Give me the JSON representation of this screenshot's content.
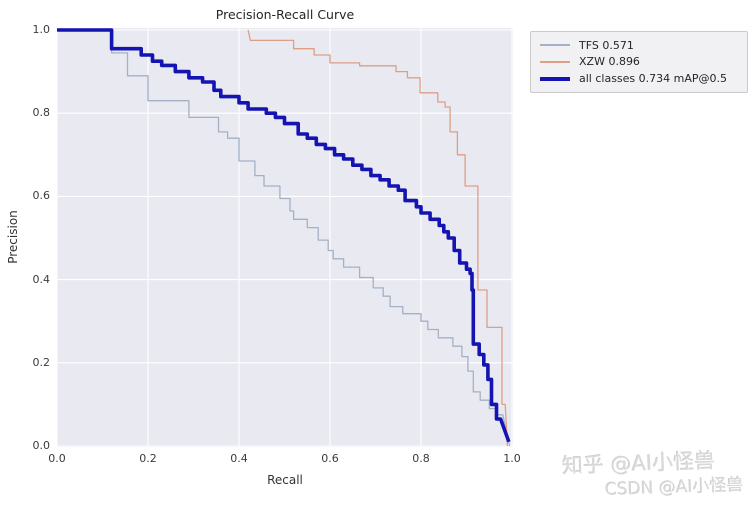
{
  "title": "Precision-Recall Curve",
  "axes": {
    "xlabel": "Recall",
    "ylabel": "Precision",
    "x_ticks": [
      0.0,
      0.2,
      0.4,
      0.6,
      0.8,
      1.0
    ],
    "y_ticks": [
      0.0,
      0.2,
      0.4,
      0.6,
      0.8,
      1.0
    ]
  },
  "legend": {
    "items": [
      {
        "label": "TFS 0.571",
        "color": "#a3b1c6",
        "weight": 2
      },
      {
        "label": "XZW 0.896",
        "color": "#dd9f88",
        "weight": 2
      },
      {
        "label": "all classes 0.734 mAP@0.5",
        "color": "#1414b2",
        "weight": 4
      }
    ]
  },
  "watermark": {
    "line1": "知乎 @AI小怪兽",
    "line2": "CSDN @AI小怪兽"
  },
  "colors": {
    "figure_bg": "#ffffff",
    "plot_bg": "#e9e9f1",
    "grid": "#ffffff",
    "tick_text": "#3b3b3b",
    "title_text": "#262626",
    "legend_bg": "#f1f1f4",
    "legend_border": "#c9c9ce",
    "watermark_text": "#d9d9d9"
  },
  "chart_data": {
    "type": "line",
    "title": "Precision-Recall Curve",
    "xlabel": "Recall",
    "ylabel": "Precision",
    "xlim": [
      0.0,
      1.0
    ],
    "ylim": [
      0.0,
      1.0
    ],
    "grid": true,
    "grid_color": "#ffffff",
    "legend_position": "outside-top-right",
    "curve_style": "step",
    "series": [
      {
        "id": "tfs",
        "name": "TFS 0.571",
        "color": "#a3b1c6",
        "width": 1.3,
        "points": [
          [
            0.0,
            1.0
          ],
          [
            0.12,
            1.0
          ],
          [
            0.12,
            0.945
          ],
          [
            0.155,
            0.945
          ],
          [
            0.155,
            0.89
          ],
          [
            0.2,
            0.89
          ],
          [
            0.2,
            0.83
          ],
          [
            0.29,
            0.83
          ],
          [
            0.29,
            0.79
          ],
          [
            0.355,
            0.79
          ],
          [
            0.355,
            0.755
          ],
          [
            0.375,
            0.755
          ],
          [
            0.375,
            0.74
          ],
          [
            0.4,
            0.74
          ],
          [
            0.4,
            0.685
          ],
          [
            0.435,
            0.685
          ],
          [
            0.435,
            0.65
          ],
          [
            0.455,
            0.65
          ],
          [
            0.455,
            0.625
          ],
          [
            0.49,
            0.625
          ],
          [
            0.49,
            0.595
          ],
          [
            0.512,
            0.595
          ],
          [
            0.512,
            0.565
          ],
          [
            0.52,
            0.565
          ],
          [
            0.52,
            0.545
          ],
          [
            0.55,
            0.545
          ],
          [
            0.55,
            0.525
          ],
          [
            0.574,
            0.525
          ],
          [
            0.574,
            0.495
          ],
          [
            0.596,
            0.495
          ],
          [
            0.596,
            0.47
          ],
          [
            0.607,
            0.47
          ],
          [
            0.607,
            0.45
          ],
          [
            0.63,
            0.45
          ],
          [
            0.63,
            0.43
          ],
          [
            0.665,
            0.43
          ],
          [
            0.665,
            0.405
          ],
          [
            0.695,
            0.405
          ],
          [
            0.695,
            0.38
          ],
          [
            0.717,
            0.38
          ],
          [
            0.717,
            0.36
          ],
          [
            0.732,
            0.36
          ],
          [
            0.732,
            0.335
          ],
          [
            0.76,
            0.335
          ],
          [
            0.76,
            0.318
          ],
          [
            0.8,
            0.318
          ],
          [
            0.8,
            0.3
          ],
          [
            0.815,
            0.3
          ],
          [
            0.815,
            0.28
          ],
          [
            0.838,
            0.28
          ],
          [
            0.838,
            0.26
          ],
          [
            0.87,
            0.26
          ],
          [
            0.87,
            0.24
          ],
          [
            0.89,
            0.24
          ],
          [
            0.89,
            0.215
          ],
          [
            0.903,
            0.215
          ],
          [
            0.903,
            0.18
          ],
          [
            0.915,
            0.18
          ],
          [
            0.915,
            0.13
          ],
          [
            0.93,
            0.13
          ],
          [
            0.93,
            0.11
          ],
          [
            0.95,
            0.11
          ],
          [
            0.95,
            0.09
          ],
          [
            0.965,
            0.09
          ],
          [
            0.965,
            0.075
          ],
          [
            0.98,
            0.075
          ],
          [
            0.99,
            0.02
          ],
          [
            0.995,
            0.0
          ]
        ]
      },
      {
        "id": "xzw",
        "name": "XZW 0.896",
        "color": "#dd9f88",
        "width": 1.3,
        "points": [
          [
            0.42,
            1.0
          ],
          [
            0.425,
            0.975
          ],
          [
            0.52,
            0.975
          ],
          [
            0.52,
            0.955
          ],
          [
            0.565,
            0.955
          ],
          [
            0.565,
            0.94
          ],
          [
            0.6,
            0.94
          ],
          [
            0.6,
            0.921
          ],
          [
            0.665,
            0.921
          ],
          [
            0.665,
            0.914
          ],
          [
            0.745,
            0.914
          ],
          [
            0.745,
            0.9
          ],
          [
            0.77,
            0.9
          ],
          [
            0.77,
            0.885
          ],
          [
            0.798,
            0.885
          ],
          [
            0.798,
            0.849
          ],
          [
            0.837,
            0.849
          ],
          [
            0.837,
            0.827
          ],
          [
            0.853,
            0.827
          ],
          [
            0.853,
            0.815
          ],
          [
            0.864,
            0.815
          ],
          [
            0.864,
            0.755
          ],
          [
            0.88,
            0.755
          ],
          [
            0.88,
            0.7
          ],
          [
            0.897,
            0.7
          ],
          [
            0.897,
            0.625
          ],
          [
            0.925,
            0.625
          ],
          [
            0.925,
            0.375
          ],
          [
            0.945,
            0.375
          ],
          [
            0.945,
            0.285
          ],
          [
            0.978,
            0.285
          ],
          [
            0.978,
            0.1
          ],
          [
            0.985,
            0.1
          ],
          [
            0.99,
            0.0
          ]
        ]
      },
      {
        "id": "all-classes",
        "name": "all classes 0.734 mAP@0.5",
        "color": "#1414b2",
        "width": 3.6,
        "points": [
          [
            0.0,
            1.0
          ],
          [
            0.12,
            1.0
          ],
          [
            0.12,
            0.955
          ],
          [
            0.185,
            0.955
          ],
          [
            0.185,
            0.94
          ],
          [
            0.21,
            0.94
          ],
          [
            0.21,
            0.925
          ],
          [
            0.23,
            0.925
          ],
          [
            0.23,
            0.915
          ],
          [
            0.26,
            0.915
          ],
          [
            0.26,
            0.9
          ],
          [
            0.29,
            0.9
          ],
          [
            0.29,
            0.885
          ],
          [
            0.32,
            0.885
          ],
          [
            0.32,
            0.875
          ],
          [
            0.345,
            0.875
          ],
          [
            0.345,
            0.855
          ],
          [
            0.36,
            0.855
          ],
          [
            0.36,
            0.84
          ],
          [
            0.4,
            0.84
          ],
          [
            0.4,
            0.825
          ],
          [
            0.42,
            0.825
          ],
          [
            0.42,
            0.81
          ],
          [
            0.46,
            0.81
          ],
          [
            0.46,
            0.8
          ],
          [
            0.48,
            0.8
          ],
          [
            0.48,
            0.79
          ],
          [
            0.5,
            0.79
          ],
          [
            0.5,
            0.775
          ],
          [
            0.53,
            0.775
          ],
          [
            0.53,
            0.75
          ],
          [
            0.55,
            0.75
          ],
          [
            0.55,
            0.74
          ],
          [
            0.57,
            0.74
          ],
          [
            0.57,
            0.725
          ],
          [
            0.59,
            0.725
          ],
          [
            0.59,
            0.715
          ],
          [
            0.61,
            0.715
          ],
          [
            0.61,
            0.7
          ],
          [
            0.63,
            0.7
          ],
          [
            0.63,
            0.69
          ],
          [
            0.65,
            0.69
          ],
          [
            0.65,
            0.675
          ],
          [
            0.67,
            0.675
          ],
          [
            0.67,
            0.665
          ],
          [
            0.69,
            0.665
          ],
          [
            0.69,
            0.65
          ],
          [
            0.71,
            0.65
          ],
          [
            0.71,
            0.64
          ],
          [
            0.73,
            0.64
          ],
          [
            0.73,
            0.625
          ],
          [
            0.75,
            0.625
          ],
          [
            0.75,
            0.615
          ],
          [
            0.765,
            0.615
          ],
          [
            0.765,
            0.59
          ],
          [
            0.79,
            0.59
          ],
          [
            0.79,
            0.575
          ],
          [
            0.8,
            0.575
          ],
          [
            0.8,
            0.56
          ],
          [
            0.82,
            0.56
          ],
          [
            0.82,
            0.545
          ],
          [
            0.84,
            0.545
          ],
          [
            0.84,
            0.53
          ],
          [
            0.85,
            0.53
          ],
          [
            0.85,
            0.515
          ],
          [
            0.86,
            0.515
          ],
          [
            0.86,
            0.5
          ],
          [
            0.873,
            0.5
          ],
          [
            0.873,
            0.47
          ],
          [
            0.885,
            0.47
          ],
          [
            0.885,
            0.44
          ],
          [
            0.9,
            0.44
          ],
          [
            0.9,
            0.425
          ],
          [
            0.908,
            0.425
          ],
          [
            0.908,
            0.415
          ],
          [
            0.912,
            0.415
          ],
          [
            0.912,
            0.375
          ],
          [
            0.915,
            0.375
          ],
          [
            0.915,
            0.245
          ],
          [
            0.928,
            0.245
          ],
          [
            0.928,
            0.22
          ],
          [
            0.938,
            0.22
          ],
          [
            0.938,
            0.195
          ],
          [
            0.947,
            0.195
          ],
          [
            0.947,
            0.16
          ],
          [
            0.955,
            0.16
          ],
          [
            0.955,
            0.1
          ],
          [
            0.966,
            0.1
          ],
          [
            0.966,
            0.065
          ],
          [
            0.975,
            0.065
          ],
          [
            0.99,
            0.02
          ],
          [
            0.993,
            0.01
          ]
        ]
      }
    ]
  }
}
